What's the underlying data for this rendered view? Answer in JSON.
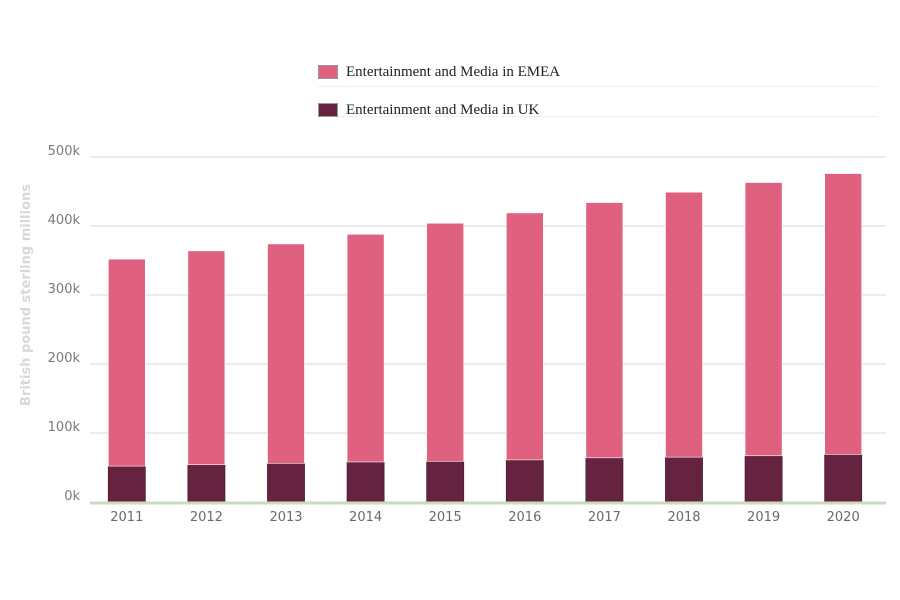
{
  "chart_data": {
    "type": "bar",
    "stacked": true,
    "categories": [
      "2011",
      "2012",
      "2013",
      "2014",
      "2015",
      "2016",
      "2017",
      "2018",
      "2019",
      "2020"
    ],
    "series": [
      {
        "name": "Entertainment and Media in EMEA",
        "color": "#e06080",
        "values": [
          300000,
          310000,
          318000,
          330000,
          345000,
          358000,
          370000,
          384000,
          396000,
          407000
        ]
      },
      {
        "name": "Entertainment and Media in UK",
        "color": "#66233f",
        "values": [
          52000,
          54000,
          56000,
          58000,
          59000,
          61000,
          64000,
          65000,
          67000,
          69000
        ]
      }
    ],
    "ylabel": "British pound sterling millions",
    "ylim": [
      0,
      500000
    ],
    "yticks": [
      0,
      100000,
      200000,
      300000,
      400000,
      500000
    ],
    "ytick_labels": [
      "0k",
      "100k",
      "200k",
      "300k",
      "400k",
      "500k"
    ],
    "grid": true,
    "legend": "top"
  }
}
